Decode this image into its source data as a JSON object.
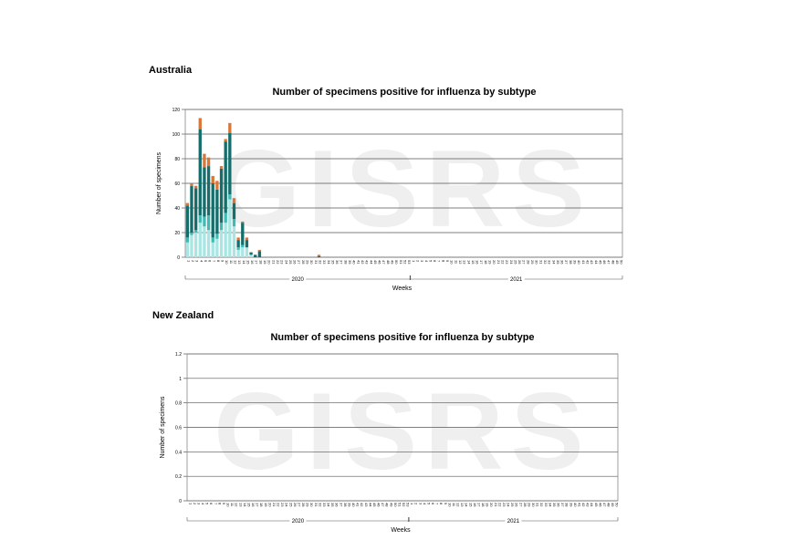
{
  "watermark": "GISRS",
  "colors": {
    "segments": [
      "#a9e6e3",
      "#3fbab4",
      "#156e6b",
      "#d9773b"
    ]
  },
  "chart_data": [
    {
      "type": "bar",
      "stacked": true,
      "country": "Australia",
      "title": "Number of specimens positive for influenza by subtype",
      "xlabel": "Weeks",
      "ylabel": "Number of specimens",
      "ylim": [
        0,
        120
      ],
      "yticks": [
        0,
        20,
        40,
        60,
        80,
        100,
        120
      ],
      "grid": true,
      "weeks_2020": [
        "1",
        "2",
        "3",
        "4",
        "5",
        "6",
        "7",
        "8",
        "9",
        "10",
        "11",
        "12",
        "13",
        "14",
        "15",
        "16",
        "17",
        "18",
        "19",
        "20",
        "21",
        "22",
        "23",
        "24",
        "25",
        "26",
        "27",
        "28",
        "29",
        "30",
        "31",
        "32",
        "33",
        "34",
        "35",
        "36",
        "37",
        "38",
        "39",
        "40",
        "41",
        "42",
        "43",
        "44",
        "45",
        "46",
        "47",
        "48",
        "49",
        "50",
        "51",
        "52",
        "53"
      ],
      "weeks_2021": [
        "1",
        "2",
        "3",
        "4",
        "5",
        "6",
        "7",
        "8",
        "9",
        "10",
        "11",
        "12",
        "13",
        "14",
        "15",
        "16",
        "17",
        "18",
        "19",
        "20",
        "21",
        "22",
        "23",
        "24",
        "25",
        "26",
        "27",
        "28",
        "29",
        "30",
        "31",
        "32",
        "33",
        "34",
        "35",
        "36",
        "37",
        "38",
        "39",
        "40",
        "41",
        "42",
        "43",
        "44",
        "45",
        "46",
        "47",
        "48",
        "49",
        "50"
      ],
      "year_labels": [
        "2020",
        "2021"
      ],
      "series": [
        {
          "values": [
            12,
            18,
            20,
            28,
            25,
            22,
            12,
            15,
            22,
            28,
            47,
            25,
            6,
            8,
            8,
            2,
            0,
            0,
            0,
            0,
            0,
            0,
            0,
            0,
            0,
            0,
            0,
            0,
            0,
            0,
            0,
            0,
            0,
            0,
            0,
            0,
            0,
            0,
            0,
            0,
            0,
            0,
            0,
            0,
            0,
            0,
            0,
            0,
            0,
            0,
            0,
            0,
            0,
            0,
            0,
            0,
            0,
            0,
            0,
            0,
            0,
            0,
            0,
            0,
            0,
            0,
            0,
            0,
            0,
            0,
            0,
            0,
            0,
            0,
            0,
            0,
            0,
            0,
            0,
            0,
            0,
            0,
            0,
            0,
            0,
            0,
            0,
            0,
            0,
            0,
            0,
            0,
            0,
            0,
            0,
            0,
            0,
            0,
            0,
            0,
            0,
            0,
            0,
            0
          ]
        },
        {
          "values": [
            4,
            2,
            2,
            6,
            8,
            12,
            4,
            4,
            6,
            8,
            4,
            6,
            2,
            2,
            0,
            0,
            0,
            0,
            0,
            0,
            0,
            0,
            0,
            0,
            0,
            0,
            0,
            0,
            0,
            0,
            0,
            0,
            0,
            0,
            0,
            0,
            0,
            0,
            0,
            0,
            0,
            0,
            0,
            0,
            0,
            0,
            0,
            0,
            0,
            0,
            0,
            0,
            0,
            0,
            0,
            0,
            0,
            0,
            0,
            0,
            0,
            0,
            0,
            0,
            0,
            0,
            0,
            0,
            0,
            0,
            0,
            0,
            0,
            0,
            0,
            0,
            0,
            0,
            0,
            0,
            0,
            0,
            0,
            0,
            0,
            0,
            0,
            0,
            0,
            0,
            0,
            0,
            0,
            0,
            0,
            0,
            0,
            0,
            0,
            0,
            0,
            0,
            0,
            0
          ]
        },
        {
          "values": [
            26,
            38,
            34,
            70,
            40,
            40,
            44,
            36,
            44,
            58,
            50,
            13,
            6,
            18,
            6,
            2,
            2,
            5,
            0,
            0,
            0,
            0,
            0,
            0,
            0,
            0,
            0,
            0,
            0,
            0,
            0,
            1,
            0,
            0,
            0,
            0,
            0,
            0,
            0,
            0,
            0,
            0,
            0,
            0,
            0,
            0,
            0,
            0,
            0,
            0,
            0,
            0,
            0,
            0,
            0,
            0,
            0,
            0,
            0,
            0,
            0,
            0,
            0,
            0,
            0,
            0,
            0,
            0,
            0,
            0,
            0,
            0,
            0,
            0,
            0,
            0,
            0,
            0,
            0,
            0,
            0,
            0,
            0,
            0,
            0,
            0,
            0,
            0,
            0,
            0,
            0,
            0,
            0,
            0,
            0,
            0,
            0,
            0,
            0,
            0,
            0,
            0,
            0,
            0
          ]
        },
        {
          "values": [
            2,
            2,
            2,
            9,
            11,
            7,
            6,
            7,
            2,
            2,
            8,
            4,
            2,
            1,
            2,
            0,
            0,
            1,
            0,
            0,
            0,
            0,
            0,
            0,
            0,
            0,
            0,
            0,
            0,
            0,
            0,
            1,
            0,
            0,
            0,
            0,
            0,
            0,
            0,
            0,
            0,
            0,
            0,
            0,
            0,
            0,
            0,
            0,
            0,
            0,
            0,
            0,
            0,
            0,
            0,
            0,
            0,
            0,
            0,
            0,
            0,
            0,
            0,
            0,
            0,
            0,
            0,
            0,
            0,
            0,
            0,
            0,
            0,
            0,
            0,
            0,
            0,
            0,
            0,
            0,
            0,
            0,
            0,
            0,
            0,
            0,
            0,
            0,
            0,
            0,
            0,
            0,
            0,
            0,
            0,
            0,
            0,
            0,
            0,
            0,
            0,
            0,
            0,
            0
          ]
        }
      ]
    },
    {
      "type": "bar",
      "stacked": true,
      "country": "New Zealand",
      "title": "Number of specimens positive for influenza by subtype",
      "xlabel": "Weeks",
      "ylabel": "Number of specimens",
      "ylim": [
        0,
        1.2
      ],
      "yticks": [
        0,
        0.2,
        0.4,
        0.6,
        0.8,
        1,
        1.2
      ],
      "grid": true,
      "year_labels": [
        "2020",
        "2021"
      ],
      "series": []
    }
  ]
}
